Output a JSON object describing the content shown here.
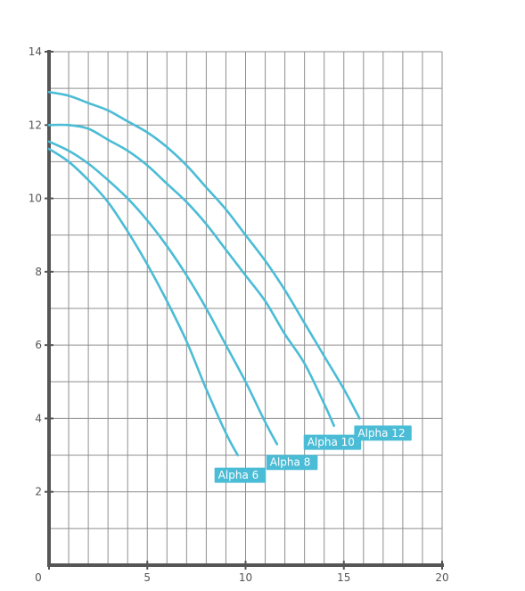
{
  "chart_data": {
    "type": "line",
    "title": "",
    "xlabel": "",
    "ylabel": "",
    "xlim": [
      0,
      20
    ],
    "ylim": [
      0,
      14
    ],
    "x_ticks": [
      "0",
      "5",
      "10",
      "15",
      "20"
    ],
    "y_ticks": [
      "2",
      "4",
      "6",
      "8",
      "10",
      "12",
      "14"
    ],
    "grid": true,
    "colors": {
      "curve": "#4bbcd6",
      "label_bg": "#4bbcd6",
      "label_text": "#ffffff",
      "grid": "#8f8f8f",
      "axis": "#555555"
    },
    "series": [
      {
        "name": "Alpha 6",
        "x": [
          0,
          1,
          2,
          3,
          4,
          5,
          6,
          7,
          8,
          9,
          9.6
        ],
        "y": [
          11.35,
          11.0,
          10.5,
          9.9,
          9.1,
          8.2,
          7.2,
          6.1,
          4.8,
          3.6,
          3.0
        ]
      },
      {
        "name": "Alpha 8",
        "x": [
          0,
          1,
          2,
          3,
          4,
          5,
          6,
          7,
          8,
          9,
          10,
          11,
          11.6
        ],
        "y": [
          11.55,
          11.3,
          10.95,
          10.5,
          10.0,
          9.4,
          8.7,
          7.9,
          7.0,
          6.0,
          5.0,
          3.9,
          3.3
        ]
      },
      {
        "name": "Alpha 10",
        "x": [
          0,
          1,
          2,
          3,
          4,
          5,
          6,
          7,
          8,
          9,
          10,
          11,
          12,
          13,
          14,
          14.5
        ],
        "y": [
          12.0,
          12.0,
          11.9,
          11.6,
          11.3,
          10.9,
          10.4,
          9.9,
          9.3,
          8.6,
          7.9,
          7.2,
          6.3,
          5.5,
          4.4,
          3.8
        ]
      },
      {
        "name": "Alpha 12",
        "x": [
          0,
          1,
          2,
          3,
          4,
          5,
          6,
          7,
          8,
          9,
          10,
          11,
          12,
          13,
          14,
          15,
          15.8
        ],
        "y": [
          12.9,
          12.8,
          12.6,
          12.4,
          12.1,
          11.8,
          11.4,
          10.9,
          10.3,
          9.7,
          9.0,
          8.3,
          7.5,
          6.6,
          5.7,
          4.8,
          4.0
        ]
      }
    ]
  }
}
